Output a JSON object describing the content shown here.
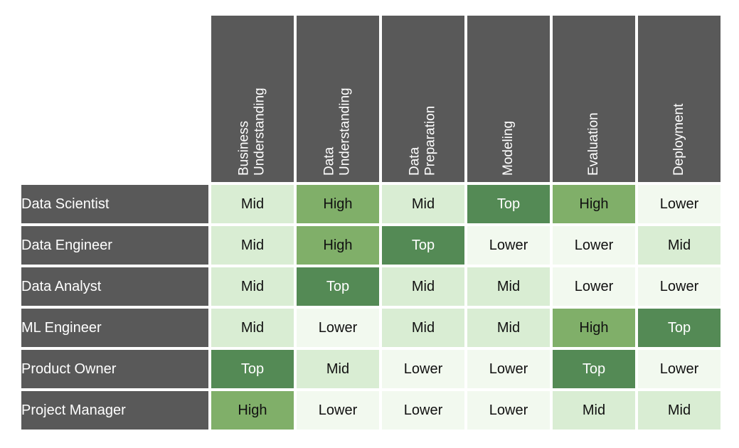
{
  "matrix": {
    "display_columns": [
      "Business\nUnderstanding",
      "Data\nUnderstanding",
      "Data\nPreparation",
      "Modeling",
      "Evaluation",
      "Deployment"
    ],
    "rows": [
      {
        "label": "Data Scientist",
        "values": [
          "Mid",
          "High",
          "Mid",
          "Top",
          "High",
          "Lower"
        ]
      },
      {
        "label": "Data Engineer",
        "values": [
          "Mid",
          "High",
          "Top",
          "Lower",
          "Lower",
          "Mid"
        ]
      },
      {
        "label": "Data Analyst",
        "values": [
          "Mid",
          "Top",
          "Mid",
          "Mid",
          "Lower",
          "Lower"
        ]
      },
      {
        "label": "ML Engineer",
        "values": [
          "Mid",
          "Lower",
          "Mid",
          "Mid",
          "High",
          "Top"
        ]
      },
      {
        "label": "Product Owner",
        "values": [
          "Top",
          "Mid",
          "Lower",
          "Lower",
          "Top",
          "Lower"
        ]
      },
      {
        "label": "Project Manager",
        "values": [
          "High",
          "Lower",
          "Lower",
          "Lower",
          "Mid",
          "Mid"
        ]
      }
    ],
    "scale_low_to_high": [
      "Lower",
      "Mid",
      "High",
      "Top"
    ]
  },
  "colors": {
    "header_bg": "#595959",
    "header_text": "#ffffff",
    "cell_text_dark": "#111111",
    "cell_text_light": "#ffffff",
    "level_top": "#548a55",
    "level_high": "#80af69",
    "level_mid": "#d9edd3",
    "level_lower": "#f2f9ef",
    "background": "#ffffff"
  },
  "chart_data": {
    "type": "heatmap",
    "x": [
      "Business Understanding",
      "Data Understanding",
      "Data Preparation",
      "Modeling",
      "Evaluation",
      "Deployment"
    ],
    "y": [
      "Data Scientist",
      "Data Engineer",
      "Data Analyst",
      "ML Engineer",
      "Product Owner",
      "Project Manager"
    ],
    "values": [
      [
        "Mid",
        "High",
        "Mid",
        "Top",
        "High",
        "Lower"
      ],
      [
        "Mid",
        "High",
        "Top",
        "Lower",
        "Lower",
        "Mid"
      ],
      [
        "Mid",
        "Top",
        "Mid",
        "Mid",
        "Lower",
        "Lower"
      ],
      [
        "Mid",
        "Lower",
        "Mid",
        "Mid",
        "High",
        "Top"
      ],
      [
        "Top",
        "Mid",
        "Lower",
        "Lower",
        "Top",
        "Lower"
      ],
      [
        "High",
        "Lower",
        "Lower",
        "Lower",
        "Mid",
        "Mid"
      ]
    ],
    "value_scale_low_to_high": [
      "Lower",
      "Mid",
      "High",
      "Top"
    ],
    "cell_colors": {
      "Top": "#548a55",
      "High": "#80af69",
      "Mid": "#d9edd3",
      "Lower": "#f2f9ef"
    },
    "legend": "none",
    "grid": "white 4px gaps between cells"
  }
}
